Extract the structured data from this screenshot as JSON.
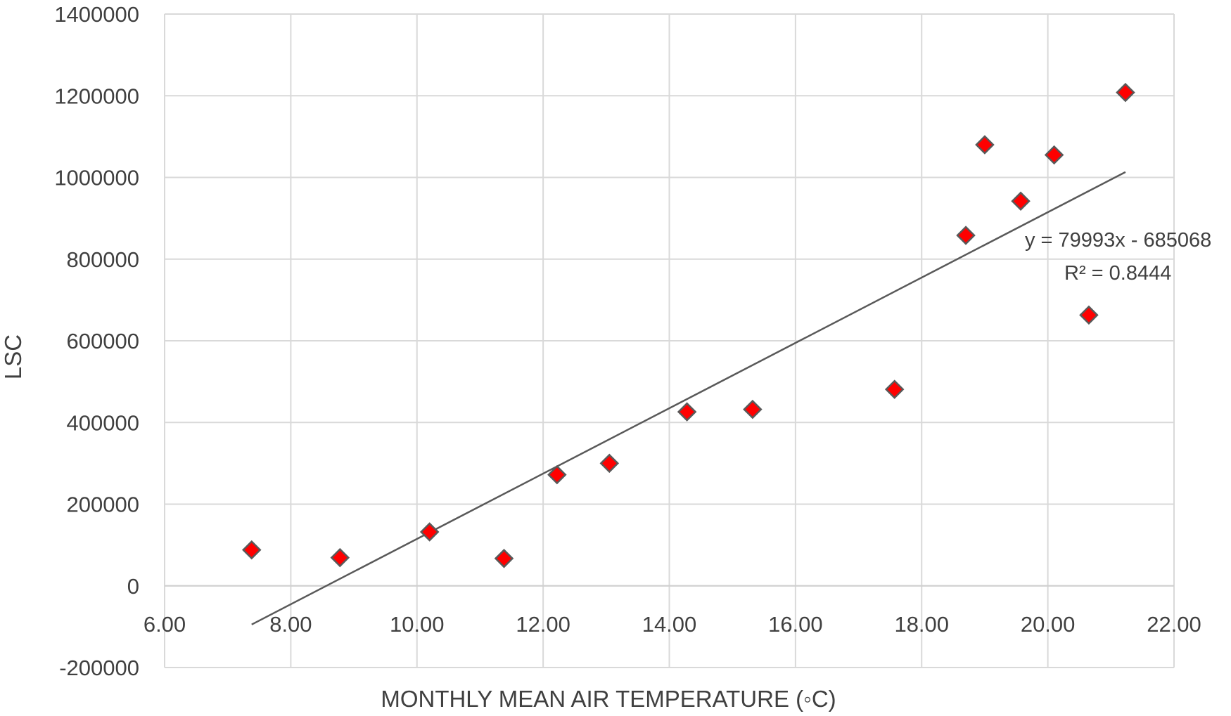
{
  "chart_data": {
    "type": "scatter",
    "title": "",
    "xlabel": "MONTHLY MEAN AIR TEMPERATURE (◦C)",
    "ylabel": "LSC",
    "xlim": [
      6.0,
      22.0
    ],
    "ylim": [
      -200000,
      1400000
    ],
    "x_ticks": [
      "6.00",
      "8.00",
      "10.00",
      "12.00",
      "14.00",
      "16.00",
      "18.00",
      "20.00",
      "22.00"
    ],
    "y_ticks": [
      "-200000",
      "0",
      "200000",
      "400000",
      "600000",
      "800000",
      "1000000",
      "1200000",
      "1400000"
    ],
    "x_tick_values": [
      6,
      8,
      10,
      12,
      14,
      16,
      18,
      20,
      22
    ],
    "y_tick_values": [
      -200000,
      0,
      200000,
      400000,
      600000,
      800000,
      1000000,
      1200000,
      1400000
    ],
    "grid": true,
    "marker": "diamond",
    "marker_color": "#ff0000",
    "marker_edge_color": "#595959",
    "trendline_color": "#595959",
    "points": [
      {
        "x": 7.38,
        "y": 88000
      },
      {
        "x": 8.78,
        "y": 69000
      },
      {
        "x": 10.2,
        "y": 132000
      },
      {
        "x": 11.38,
        "y": 67000
      },
      {
        "x": 12.22,
        "y": 272000
      },
      {
        "x": 13.05,
        "y": 300000
      },
      {
        "x": 14.28,
        "y": 426000
      },
      {
        "x": 15.32,
        "y": 432000
      },
      {
        "x": 17.57,
        "y": 481000
      },
      {
        "x": 18.7,
        "y": 858000
      },
      {
        "x": 19.0,
        "y": 1080000
      },
      {
        "x": 19.57,
        "y": 942000
      },
      {
        "x": 20.1,
        "y": 1055000
      },
      {
        "x": 20.65,
        "y": 663000
      },
      {
        "x": 21.23,
        "y": 1208000
      }
    ],
    "trendline": {
      "type": "linear",
      "slope": 79993,
      "intercept": -685068,
      "x_start": 7.38,
      "x_end": 21.23,
      "equation": "y = 79993x - 685068",
      "r_squared": "R² = 0.8444"
    }
  }
}
